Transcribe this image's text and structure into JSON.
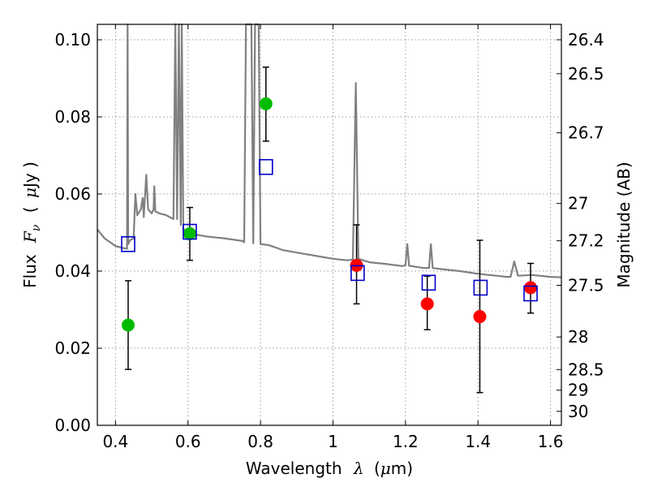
{
  "chart_data": {
    "type": "scatter",
    "title": "",
    "xlabel_text": "Wavelength",
    "xlabel_symbol": "λ",
    "xlabel_unit_open": "(",
    "xlabel_unit_mu": "μ",
    "xlabel_unit_rest": "m)",
    "ylabel_text": "Flux",
    "ylabel_symbol_base": "F",
    "ylabel_symbol_sub": "ν",
    "ylabel_unit_open": "(",
    "ylabel_unit_mu": "μ",
    "ylabel_unit_rest": "Jy )",
    "y2label": "Magnitude (AB)",
    "xlim": [
      0.35,
      1.63
    ],
    "ylim": [
      0.0,
      0.104
    ],
    "grid": true,
    "x_ticks": [
      {
        "value": 0.4,
        "label": "0.4"
      },
      {
        "value": 0.6,
        "label": "0.6"
      },
      {
        "value": 0.8,
        "label": "0.8"
      },
      {
        "value": 1.0,
        "label": "1"
      },
      {
        "value": 1.2,
        "label": "1.2"
      },
      {
        "value": 1.4,
        "label": "1.4"
      },
      {
        "value": 1.6,
        "label": "1.6"
      }
    ],
    "y_ticks": [
      {
        "value": 0.0,
        "label": "0.00"
      },
      {
        "value": 0.02,
        "label": "0.02"
      },
      {
        "value": 0.04,
        "label": "0.04"
      },
      {
        "value": 0.06,
        "label": "0.06"
      },
      {
        "value": 0.08,
        "label": "0.08"
      },
      {
        "value": 0.1,
        "label": "0.10"
      }
    ],
    "mag_ticks": [
      "26.4",
      "26.5",
      "26.7",
      "27",
      "27.2",
      "27.5",
      "28",
      "28.5",
      "29",
      "30"
    ],
    "model_spectrum": {
      "color": "#808080",
      "points": [
        [
          0.35,
          0.0508
        ],
        [
          0.37,
          0.0485
        ],
        [
          0.4,
          0.0465
        ],
        [
          0.42,
          0.046
        ],
        [
          0.432,
          0.0458
        ],
        [
          0.4335,
          0.104
        ],
        [
          0.435,
          0.047
        ],
        [
          0.44,
          0.048
        ],
        [
          0.45,
          0.0485
        ],
        [
          0.455,
          0.06
        ],
        [
          0.46,
          0.0545
        ],
        [
          0.47,
          0.056
        ],
        [
          0.475,
          0.059
        ],
        [
          0.478,
          0.054
        ],
        [
          0.485,
          0.065
        ],
        [
          0.49,
          0.056
        ],
        [
          0.5,
          0.055
        ],
        [
          0.505,
          0.056
        ],
        [
          0.507,
          0.062
        ],
        [
          0.51,
          0.0555
        ],
        [
          0.52,
          0.055
        ],
        [
          0.54,
          0.0545
        ],
        [
          0.56,
          0.0535
        ],
        [
          0.565,
          0.104
        ],
        [
          0.57,
          0.0535
        ],
        [
          0.575,
          0.104
        ],
        [
          0.58,
          0.052
        ],
        [
          0.583,
          0.104
        ],
        [
          0.587,
          0.051
        ],
        [
          0.595,
          0.05
        ],
        [
          0.62,
          0.0495
        ],
        [
          0.65,
          0.049
        ],
        [
          0.7,
          0.0485
        ],
        [
          0.75,
          0.0478
        ],
        [
          0.755,
          0.0475
        ],
        [
          0.76,
          0.104
        ],
        [
          0.775,
          0.104
        ],
        [
          0.78,
          0.0472
        ],
        [
          0.785,
          0.104
        ],
        [
          0.795,
          0.104
        ],
        [
          0.8,
          0.047
        ],
        [
          0.82,
          0.0468
        ],
        [
          0.84,
          0.0462
        ],
        [
          0.86,
          0.0455
        ],
        [
          0.9,
          0.0448
        ],
        [
          0.95,
          0.044
        ],
        [
          1.0,
          0.0432
        ],
        [
          1.02,
          0.043
        ],
        [
          1.04,
          0.0428
        ],
        [
          1.055,
          0.043
        ],
        [
          1.063,
          0.0888
        ],
        [
          1.07,
          0.0432
        ],
        [
          1.1,
          0.0423
        ],
        [
          1.15,
          0.0418
        ],
        [
          1.19,
          0.0413
        ],
        [
          1.2,
          0.0415
        ],
        [
          1.205,
          0.047
        ],
        [
          1.21,
          0.0414
        ],
        [
          1.25,
          0.0408
        ],
        [
          1.265,
          0.0408
        ],
        [
          1.27,
          0.047
        ],
        [
          1.275,
          0.0408
        ],
        [
          1.3,
          0.0405
        ],
        [
          1.35,
          0.04
        ],
        [
          1.4,
          0.0393
        ],
        [
          1.45,
          0.0388
        ],
        [
          1.48,
          0.0385
        ],
        [
          1.49,
          0.0385
        ],
        [
          1.5,
          0.0425
        ],
        [
          1.51,
          0.0388
        ],
        [
          1.55,
          0.039
        ],
        [
          1.6,
          0.0385
        ],
        [
          1.63,
          0.0384
        ]
      ]
    },
    "series": [
      {
        "marker": "circle",
        "color": "#00bb00",
        "points": [
          {
            "x": 0.435,
            "y": 0.026,
            "yerr_low": 0.0145,
            "yerr_high": 0.0375
          },
          {
            "x": 0.605,
            "y": 0.0497,
            "yerr_low": 0.0428,
            "yerr_high": 0.0565
          },
          {
            "x": 0.815,
            "y": 0.0834,
            "yerr_low": 0.0737,
            "yerr_high": 0.0929
          }
        ]
      },
      {
        "marker": "circle",
        "color": "#ff0000",
        "points": [
          {
            "x": 1.065,
            "y": 0.0415,
            "yerr_low": 0.0315,
            "yerr_high": 0.052
          },
          {
            "x": 1.26,
            "y": 0.0315,
            "yerr_low": 0.0248,
            "yerr_high": 0.0387
          },
          {
            "x": 1.405,
            "y": 0.0282,
            "yerr_low": 0.0085,
            "yerr_high": 0.048
          },
          {
            "x": 1.545,
            "y": 0.0357,
            "yerr_low": 0.0291,
            "yerr_high": 0.042
          }
        ]
      },
      {
        "marker": "square-open",
        "color": "#0000cc",
        "points": [
          {
            "x": 0.435,
            "y": 0.047
          },
          {
            "x": 0.605,
            "y": 0.0502
          },
          {
            "x": 0.815,
            "y": 0.067
          },
          {
            "x": 1.068,
            "y": 0.0395
          },
          {
            "x": 1.264,
            "y": 0.037
          },
          {
            "x": 1.407,
            "y": 0.0357
          },
          {
            "x": 1.545,
            "y": 0.0342
          }
        ]
      }
    ]
  }
}
